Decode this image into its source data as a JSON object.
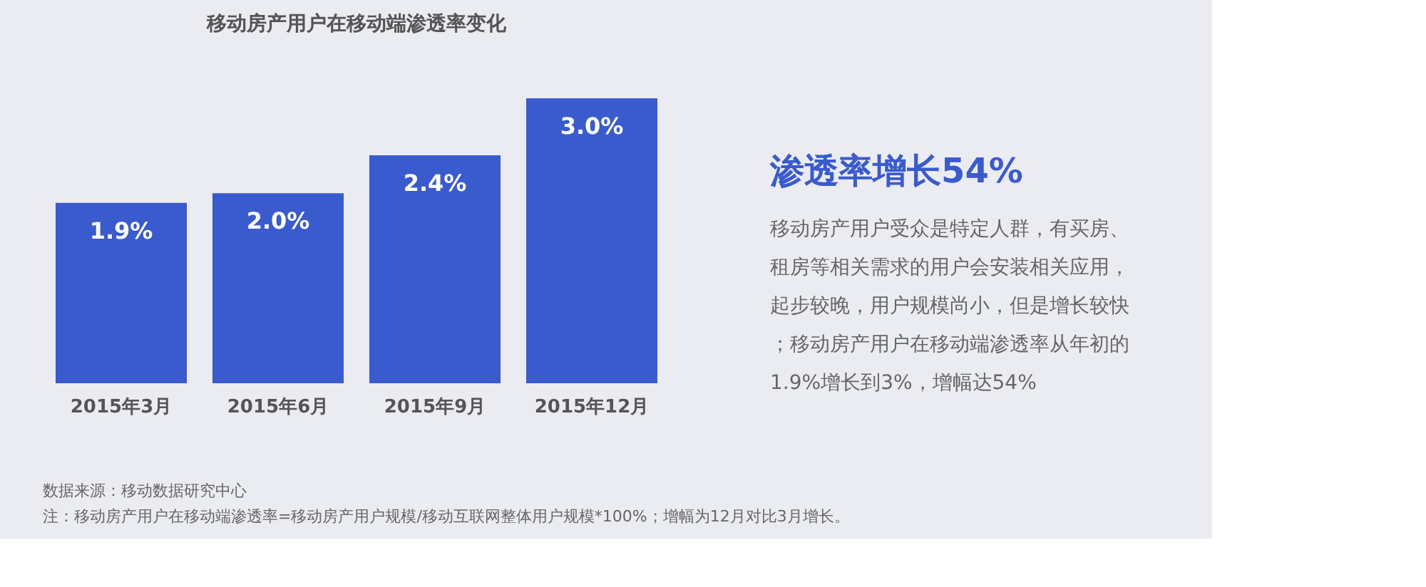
{
  "chart_data": {
    "type": "bar",
    "title": "移动房产用户在移动端渗透率变化",
    "categories": [
      "2015年3月",
      "2015年6月",
      "2015年9月",
      "2015年12月"
    ],
    "values": [
      1.9,
      2.0,
      2.4,
      3.0
    ],
    "value_labels": [
      "1.9%",
      "2.0%",
      "2.4%",
      "3.0%"
    ],
    "color": "#3a5bcd",
    "annotations": [
      "渗透率增长54%",
      "移动房产用户受众是特定人群，有买房、租房等相关需求的用户会安装相关应用，起步较晚，用户规模尚小，但是增长较快；移动房产用户在移动端渗透率从年初的1.9%增长到3%，增幅达54%",
      "数据来源：移动数据研究中心",
      "注：移动房产用户在移动端渗透率=移动房产用户规模/移动互联网整体用户规模*100%；增幅为12月对比3月增长。"
    ]
  }
}
